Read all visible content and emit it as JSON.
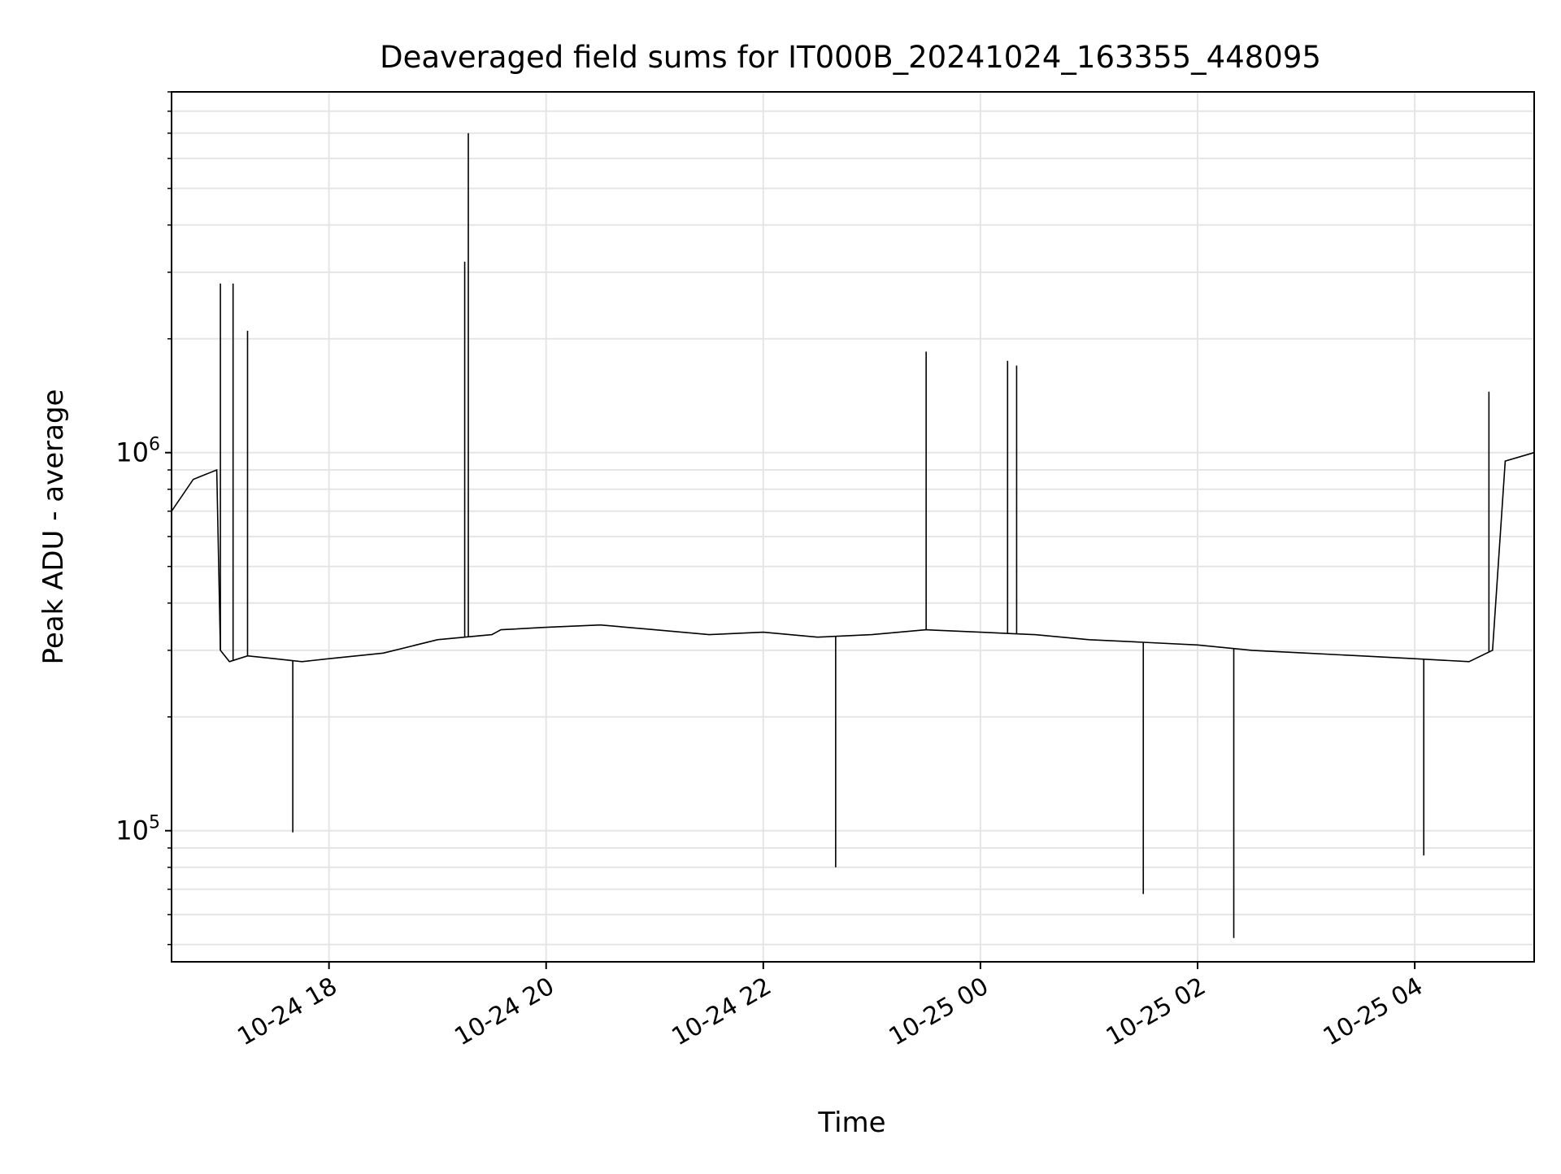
{
  "chart_data": {
    "type": "line",
    "title": "Deaveraged field sums for IT000B_20241024_163355_448095",
    "xlabel": "Time",
    "ylabel": "Peak ADU - average",
    "yscale": "log",
    "xlim": [
      "2024-10-24 16:33",
      "2024-10-25 05:06"
    ],
    "ylim": [
      45000,
      9000000
    ],
    "grid": true,
    "line_color": "#000000",
    "grid_color": "#e5e5e5",
    "x_ticks": [
      {
        "label": "10-24 18",
        "value": "2024-10-24 18:00"
      },
      {
        "label": "10-24 20",
        "value": "2024-10-24 20:00"
      },
      {
        "label": "10-24 22",
        "value": "2024-10-24 22:00"
      },
      {
        "label": "10-25 00",
        "value": "2024-10-25 00:00"
      },
      {
        "label": "10-25 02",
        "value": "2024-10-25 02:00"
      },
      {
        "label": "10-25 04",
        "value": "2024-10-25 04:00"
      }
    ],
    "y_ticks": [
      {
        "base": "10",
        "exp": "5",
        "value": 100000
      },
      {
        "base": "10",
        "exp": "6",
        "value": 1000000
      }
    ],
    "series": [
      {
        "color": "#000000",
        "x": [
          "2024-10-24 16:33",
          "2024-10-24 16:45",
          "2024-10-24 16:58",
          "2024-10-24 17:00",
          "2024-10-24 17:05",
          "2024-10-24 17:15",
          "2024-10-24 17:30",
          "2024-10-24 17:45",
          "2024-10-24 18:00",
          "2024-10-24 18:30",
          "2024-10-24 19:00",
          "2024-10-24 19:30",
          "2024-10-24 19:35",
          "2024-10-24 20:00",
          "2024-10-24 20:30",
          "2024-10-24 21:00",
          "2024-10-24 21:30",
          "2024-10-24 22:00",
          "2024-10-24 22:30",
          "2024-10-24 23:00",
          "2024-10-24 23:30",
          "2024-10-25 00:00",
          "2024-10-25 00:30",
          "2024-10-25 01:00",
          "2024-10-25 01:30",
          "2024-10-25 02:00",
          "2024-10-25 02:30",
          "2024-10-25 03:00",
          "2024-10-25 03:30",
          "2024-10-25 04:00",
          "2024-10-25 04:30",
          "2024-10-25 04:43",
          "2024-10-25 04:50",
          "2024-10-25 05:06"
        ],
        "y": [
          700000,
          850000,
          900000,
          300000,
          280000,
          290000,
          285000,
          280000,
          285000,
          295000,
          320000,
          330000,
          340000,
          345000,
          350000,
          340000,
          330000,
          335000,
          325000,
          330000,
          340000,
          335000,
          330000,
          320000,
          315000,
          310000,
          300000,
          295000,
          290000,
          285000,
          280000,
          300000,
          950000,
          1000000
        ]
      }
    ],
    "peaks": [
      {
        "x": "2024-10-24 17:00",
        "y": 2800000
      },
      {
        "x": "2024-10-24 17:07",
        "y": 2800000
      },
      {
        "x": "2024-10-24 17:15",
        "y": 2100000
      },
      {
        "x": "2024-10-24 19:15",
        "y": 3200000
      },
      {
        "x": "2024-10-24 19:17",
        "y": 7000000
      },
      {
        "x": "2024-10-24 23:30",
        "y": 1850000
      },
      {
        "x": "2024-10-25 00:15",
        "y": 1750000
      },
      {
        "x": "2024-10-25 00:20",
        "y": 1700000
      },
      {
        "x": "2024-10-25 04:41",
        "y": 1450000
      }
    ],
    "troughs": [
      {
        "x": "2024-10-24 17:40",
        "y": 99000
      },
      {
        "x": "2024-10-24 22:40",
        "y": 80000
      },
      {
        "x": "2024-10-25 01:30",
        "y": 68000
      },
      {
        "x": "2024-10-25 02:20",
        "y": 52000
      },
      {
        "x": "2024-10-25 04:05",
        "y": 86000
      }
    ]
  }
}
